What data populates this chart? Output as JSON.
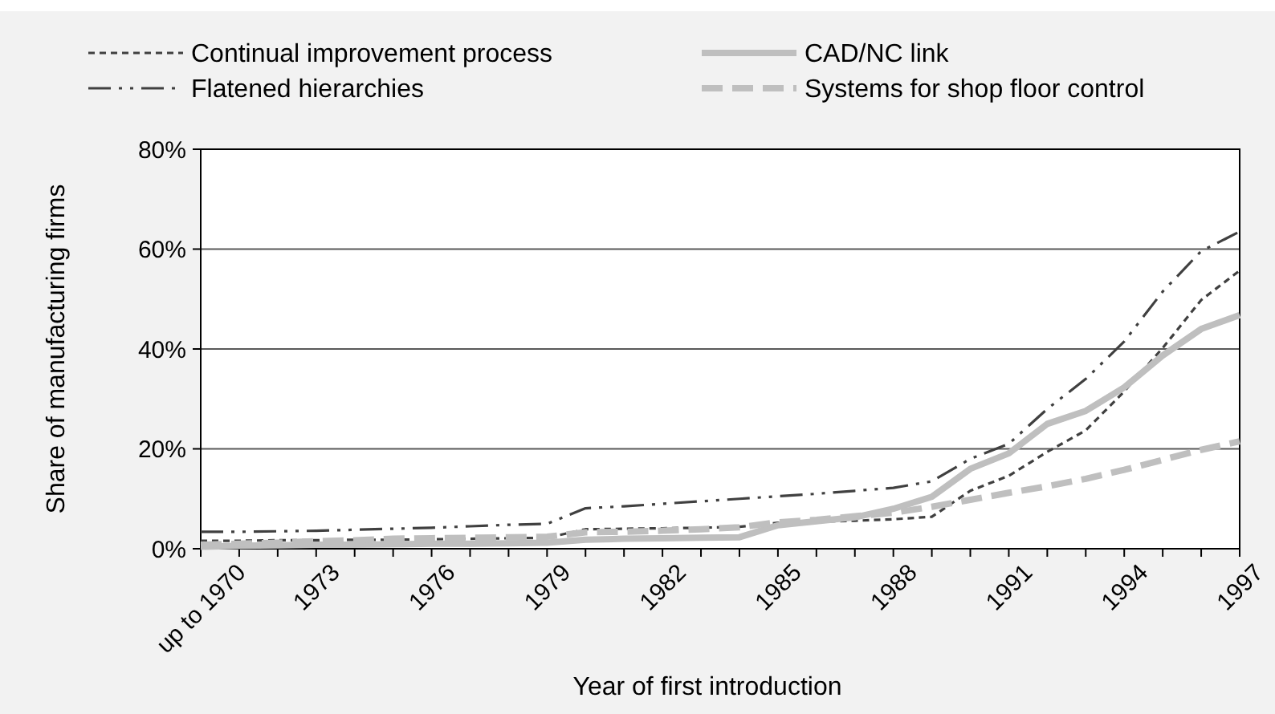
{
  "chart_data": {
    "type": "line",
    "xlabel": "Year of first introduction",
    "ylabel": "Share of manufacturing firms",
    "categories": [
      "up to 1970",
      null,
      null,
      "1973",
      null,
      null,
      "1976",
      null,
      null,
      "1979",
      null,
      null,
      "1982",
      null,
      null,
      "1985",
      null,
      null,
      "1988",
      null,
      null,
      "1991",
      null,
      null,
      "1994",
      null,
      null,
      "1997"
    ],
    "series": [
      {
        "name": "Continual improvement process",
        "color": "#404040",
        "line_style": "dashed",
        "values": [
          1.6,
          1.6,
          1.7,
          1.7,
          1.8,
          1.8,
          1.9,
          2.0,
          2.1,
          2.2,
          3.9,
          4.0,
          4.1,
          4.2,
          4.4,
          5.2,
          5.4,
          5.6,
          5.9,
          6.4,
          11.6,
          14.6,
          19.4,
          23.7,
          31.5,
          40.2,
          49.8,
          55.7
        ]
      },
      {
        "name": "CAD/NC link",
        "color": "#bfbfbf",
        "line_style": "solid",
        "values": [
          0.4,
          0.6,
          0.7,
          0.8,
          0.8,
          0.9,
          1.0,
          1.0,
          1.1,
          1.2,
          1.8,
          2.0,
          2.1,
          2.2,
          2.3,
          4.7,
          5.5,
          6.3,
          8.0,
          10.4,
          16.0,
          19.1,
          25.0,
          27.6,
          32.3,
          38.7,
          44.0,
          46.8
        ]
      },
      {
        "name": "Flatened hierarchies",
        "color": "#404040",
        "line_style": "dashdot",
        "values": [
          3.4,
          3.4,
          3.5,
          3.6,
          3.8,
          4.0,
          4.2,
          4.5,
          4.8,
          5.0,
          8.1,
          8.5,
          9.0,
          9.5,
          10.0,
          10.5,
          11.0,
          11.6,
          12.2,
          13.5,
          18.0,
          21.0,
          28.0,
          34.0,
          41.5,
          51.5,
          59.6,
          63.5
        ]
      },
      {
        "name": "Systems for shop floor control",
        "color": "#bfbfbf",
        "line_style": "dashed",
        "values": [
          0.8,
          1.0,
          1.2,
          1.5,
          1.7,
          2.0,
          2.1,
          2.2,
          2.3,
          2.4,
          3.3,
          3.4,
          3.6,
          3.9,
          4.3,
          5.3,
          5.8,
          6.5,
          7.2,
          8.4,
          9.8,
          11.2,
          12.5,
          14.0,
          15.8,
          17.8,
          19.8,
          21.5
        ]
      }
    ],
    "ylim": [
      0,
      80
    ],
    "yticks": [
      {
        "value": 0,
        "label": "0%"
      },
      {
        "value": 20,
        "label": "20%"
      },
      {
        "value": 40,
        "label": "40%"
      },
      {
        "value": 60,
        "label": "60%"
      },
      {
        "value": 80,
        "label": "80%"
      }
    ],
    "grid": "y",
    "legend": "top"
  }
}
